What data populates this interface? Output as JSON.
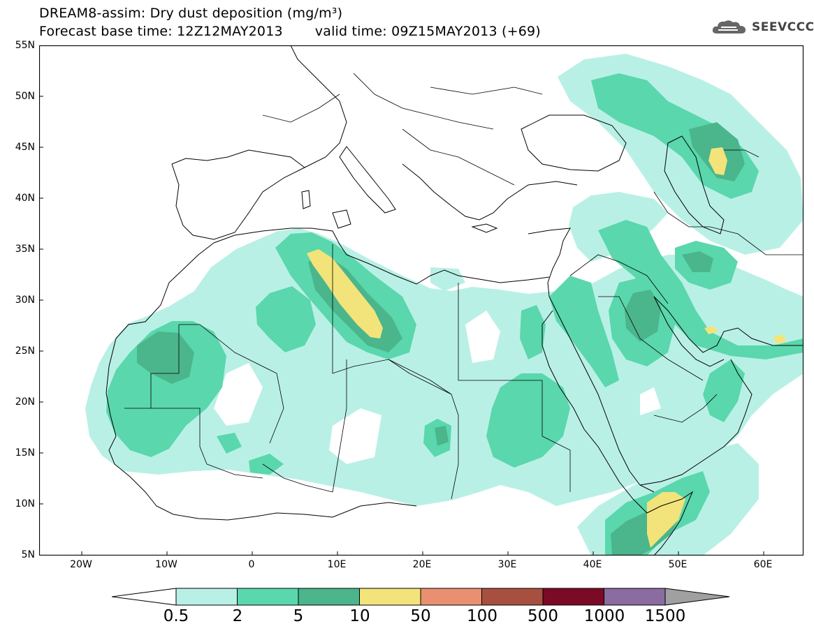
{
  "header": {
    "title_line1": "DREAM8-assim: Dry dust deposition (mg/m³)",
    "forecast_base": "Forecast base time: 12Z12MAY2013",
    "valid_time": "valid time: 09Z15MAY2013 (+69)",
    "logo_text": "SEEVCCC"
  },
  "map": {
    "lon_range": [
      -25,
      65
    ],
    "lat_range": [
      5,
      55
    ],
    "lat_labels": [
      "55N",
      "50N",
      "45N",
      "40N",
      "35N",
      "30N",
      "25N",
      "20N",
      "15N",
      "10N",
      "5N"
    ],
    "lon_labels": [
      "20W",
      "10W",
      "0",
      "10E",
      "20E",
      "30E",
      "40E",
      "50E",
      "60E"
    ]
  },
  "colorbar": {
    "labels": [
      "0.5",
      "2",
      "5",
      "10",
      "50",
      "100",
      "500",
      "1000",
      "1500"
    ],
    "colors": [
      "#b9f0e6",
      "#5ad7ac",
      "#4bb58c",
      "#f2e47a",
      "#e89070",
      "#a85040",
      "#7a0a26",
      "#8a6ca0"
    ],
    "under_color": "#ffffff",
    "over_color": "#a0a0a0"
  },
  "legend_classes": {
    "c1": "#b9f0e6",
    "c2": "#5ad7ac",
    "c3": "#4bb58c",
    "c4": "#f2e47a"
  }
}
